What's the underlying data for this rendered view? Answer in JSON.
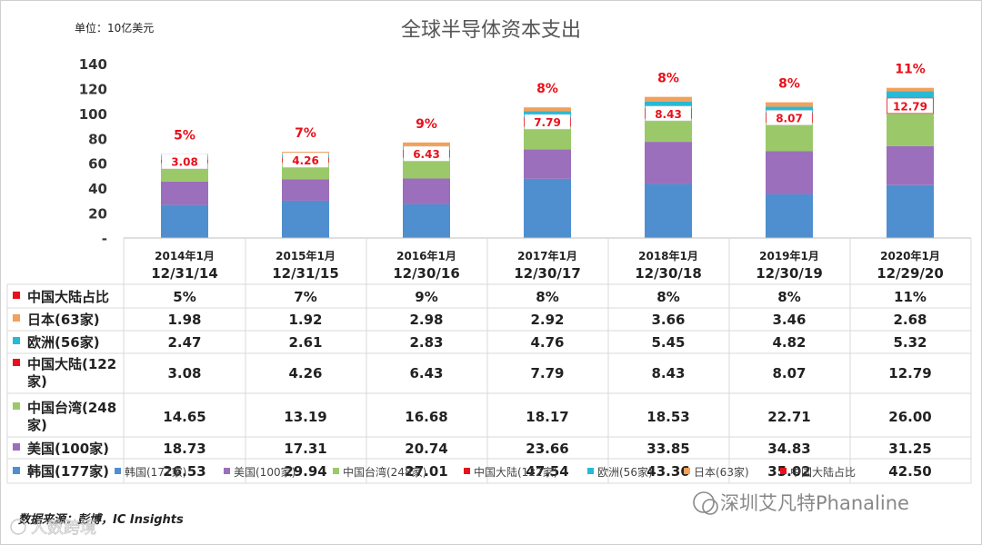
{
  "chart_data": {
    "type": "bar",
    "stacked": true,
    "title": "全球半导体资本支出",
    "unit": "单位：10亿美元",
    "categories_top": [
      "2014年1月",
      "2015年1月",
      "2016年1月",
      "2017年1月",
      "2018年1月",
      "2019年1月",
      "2020年1月"
    ],
    "categories": [
      "12/31/14",
      "12/31/15",
      "12/30/16",
      "12/30/17",
      "12/30/18",
      "12/30/19",
      "12/29/20"
    ],
    "ylim": [
      0,
      140
    ],
    "yticks": [
      "-",
      "20",
      "40",
      "60",
      "80",
      "100",
      "120",
      "140"
    ],
    "share_label": "中国大陆占比",
    "share_values": [
      "5%",
      "7%",
      "9%",
      "8%",
      "8%",
      "8%",
      "11%"
    ],
    "series": [
      {
        "name": "韩国(177家)",
        "table_label": "韩国(177家)",
        "color": "#4f8fcf",
        "values": [
          26.53,
          29.94,
          27.01,
          47.54,
          43.36,
          35.02,
          42.5
        ],
        "display": [
          "26.53",
          "29.94",
          "27.01",
          "47.54",
          "43.36",
          "35.02",
          "42.50"
        ]
      },
      {
        "name": "美国(100家)",
        "table_label": "美国(100家)",
        "color": "#9b6fbb",
        "values": [
          18.73,
          17.31,
          20.74,
          23.66,
          33.85,
          34.83,
          31.25
        ],
        "display": [
          "18.73",
          "17.31",
          "20.74",
          "23.66",
          "33.85",
          "34.83",
          "31.25"
        ]
      },
      {
        "name": "中国台湾(248家)",
        "table_label": "中国台湾(248家)",
        "color": "#9bc96a",
        "values": [
          14.65,
          13.19,
          16.68,
          18.17,
          18.53,
          22.71,
          26.0
        ],
        "display": [
          "14.65",
          "13.19",
          "16.68",
          "18.17",
          "18.53",
          "22.71",
          "26.00"
        ]
      },
      {
        "name": "中国大陆(122家)",
        "table_label": "中国大陆(122家)",
        "color": "#e8101a",
        "values": [
          3.08,
          4.26,
          6.43,
          7.79,
          8.43,
          8.07,
          12.79
        ],
        "display": [
          "3.08",
          "4.26",
          "6.43",
          "7.79",
          "8.43",
          "8.07",
          "12.79"
        ]
      },
      {
        "name": "欧洲(56家)",
        "table_label": "欧洲(56家)",
        "color": "#27b9d6",
        "values": [
          2.47,
          2.61,
          2.83,
          4.76,
          5.45,
          4.82,
          5.32
        ],
        "display": [
          "2.47",
          "2.61",
          "2.83",
          "4.76",
          "5.45",
          "4.82",
          "5.32"
        ]
      },
      {
        "name": "日本(63家)",
        "table_label": "日本(63家)",
        "color": "#f3a05a",
        "values": [
          1.98,
          1.92,
          2.98,
          2.92,
          3.66,
          3.46,
          2.68
        ],
        "display": [
          "1.98",
          "1.92",
          "2.98",
          "2.92",
          "3.66",
          "3.46",
          "2.68"
        ]
      }
    ],
    "source": "数据来源：彭博，IC Insights",
    "watermark_right": "深圳艾凡特Phanaline",
    "watermark_left": "人数跨境"
  },
  "colors": {
    "share_marker": "#e8101a",
    "label_red": "#e8101a"
  }
}
